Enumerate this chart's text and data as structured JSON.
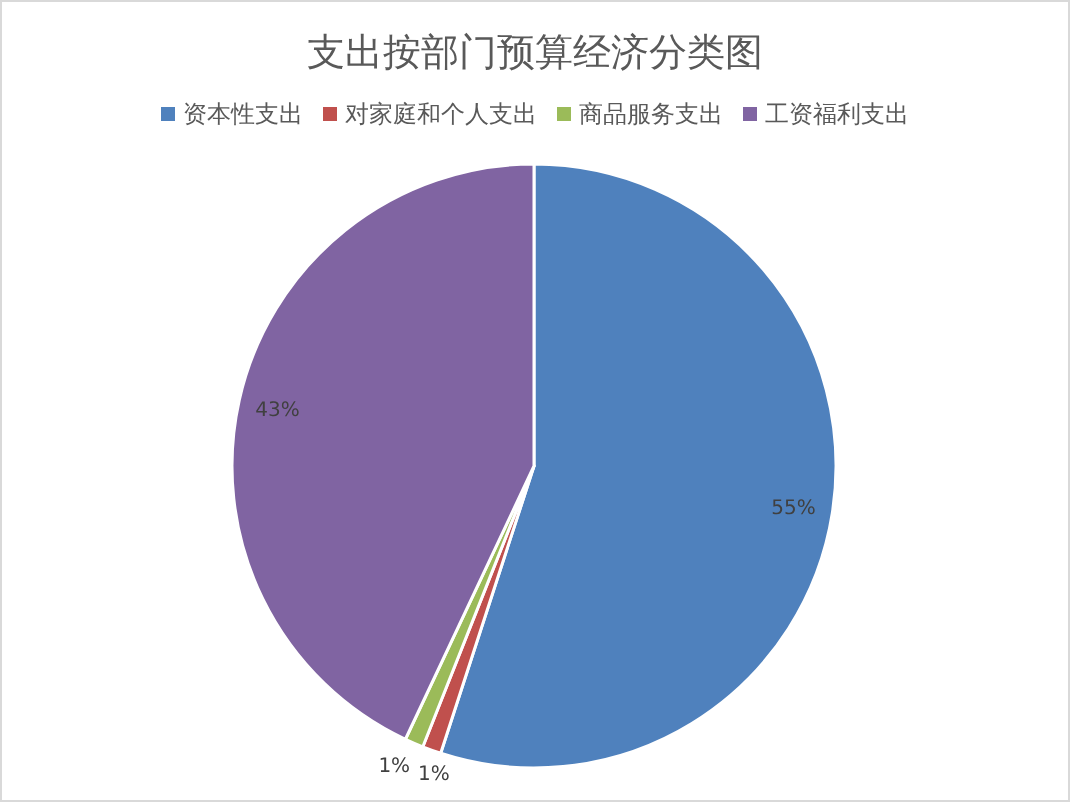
{
  "chart_data": {
    "type": "pie",
    "title": "支出按部门预算经济分类图",
    "categories": [
      "资本性支出",
      "对家庭和个人支出",
      "商品服务支出",
      "工资福利支出"
    ],
    "values": [
      55,
      1,
      1,
      43
    ],
    "colors": [
      "#4f81bd",
      "#c0504d",
      "#9bbb59",
      "#8064a2"
    ],
    "value_labels": [
      "55%",
      "1%",
      "1%",
      "43%"
    ],
    "legend": "top"
  }
}
